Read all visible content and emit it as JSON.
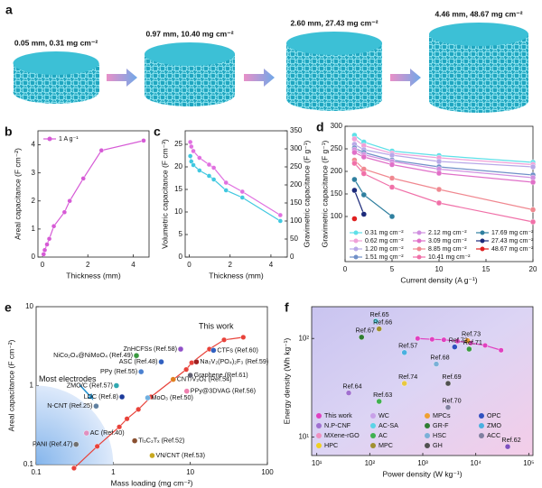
{
  "panel_a": {
    "letter": "a",
    "stages": [
      "0.05 mm, 0.31 mg cm⁻²",
      "0.97 mm, 10.40 mg cm⁻²",
      "2.60 mm, 27.43 mg cm⁻²",
      "4.46 mm, 48.67 mg cm⁻²"
    ]
  },
  "chart_data": [
    {
      "letter": "b",
      "type": "line",
      "xlabel": "Thickness (mm)",
      "ylabel": "Areal capacitance (F cm⁻²)",
      "xlim": [
        -0.2,
        4.7
      ],
      "xticks": [
        0,
        2,
        4
      ],
      "ylim": [
        0,
        4.5
      ],
      "yticks": [
        0,
        1,
        2,
        3,
        4
      ],
      "legend": "upper left",
      "series": [
        {
          "name": "1 A g⁻¹",
          "color": "#d65ad6",
          "x": [
            0.05,
            0.1,
            0.2,
            0.3,
            0.5,
            0.97,
            1.2,
            1.8,
            2.6,
            4.46
          ],
          "values": [
            0.1,
            0.25,
            0.45,
            0.65,
            1.1,
            1.6,
            2.0,
            2.8,
            3.8,
            4.15
          ]
        }
      ]
    },
    {
      "letter": "c",
      "type": "line",
      "xlabel": "Thickness (mm)",
      "ylabel": "Volumetric capacitance (F cm⁻³)",
      "y2label": "Gravimetric capacitance (F g⁻¹)",
      "xlim": [
        -0.2,
        4.8
      ],
      "xticks": [
        0,
        2,
        4
      ],
      "ylim": [
        0,
        28
      ],
      "yticks": [
        0,
        5,
        10,
        15,
        20,
        25
      ],
      "y2lim": [
        0,
        350
      ],
      "y2ticks": [
        0,
        50,
        100,
        150,
        200,
        250,
        300,
        350
      ],
      "series": [
        {
          "color": "#e070e0",
          "x": [
            0.05,
            0.1,
            0.2,
            0.5,
            0.97,
            1.2,
            1.8,
            2.6,
            4.46
          ],
          "values": [
            25.5,
            24.5,
            23.5,
            22,
            20.5,
            19.8,
            16.5,
            14.5,
            9.3
          ]
        },
        {
          "color": "#40c8e0",
          "axis": "y2",
          "x": [
            0.05,
            0.1,
            0.2,
            0.5,
            0.97,
            1.2,
            1.8,
            2.6,
            4.46
          ],
          "values": [
            280,
            265,
            255,
            240,
            225,
            215,
            185,
            165,
            100
          ]
        }
      ]
    },
    {
      "letter": "d",
      "type": "line",
      "xlabel": "Current density (A g⁻¹)",
      "ylabel": "Gravimetric capacitance (F g⁻¹)",
      "xlim": [
        0,
        20
      ],
      "xticks": [
        0,
        5,
        10,
        15,
        20
      ],
      "ylim": [
        0,
        300
      ],
      "yticks": [
        100,
        150,
        200,
        250,
        300
      ],
      "legend": "lower left",
      "series": [
        {
          "name": "0.31 mg cm⁻²",
          "color": "#5de0e8",
          "x": [
            1,
            2,
            5,
            10,
            20
          ],
          "values": [
            280,
            265,
            245,
            235,
            220
          ]
        },
        {
          "name": "0.62 mg cm⁻²",
          "color": "#f0a0d8",
          "x": [
            1,
            2,
            5,
            10,
            20
          ],
          "values": [
            272,
            257,
            240,
            230,
            215
          ]
        },
        {
          "name": "1.20 mg cm⁻²",
          "color": "#b8a8e8",
          "x": [
            1,
            2,
            5,
            10,
            20
          ],
          "values": [
            260,
            248,
            236,
            222,
            210
          ]
        },
        {
          "name": "1.51 mg cm⁻²",
          "color": "#7090c8",
          "x": [
            1,
            2,
            5,
            10,
            20
          ],
          "values": [
            252,
            242,
            225,
            210,
            192
          ]
        },
        {
          "name": "2.12 mg cm⁻²",
          "color": "#d090e0",
          "x": [
            1,
            2,
            5,
            10,
            20
          ],
          "values": [
            248,
            237,
            222,
            205,
            186
          ]
        },
        {
          "name": "3.09 mg cm⁻²",
          "color": "#e070c8",
          "x": [
            1,
            2,
            5,
            10,
            20
          ],
          "values": [
            242,
            232,
            215,
            196,
            176
          ]
        },
        {
          "name": "8.85 mg cm⁻²",
          "color": "#f08890",
          "x": [
            1,
            2,
            5,
            10,
            20
          ],
          "values": [
            225,
            205,
            185,
            160,
            115
          ]
        },
        {
          "name": "10.41 mg cm⁻²",
          "color": "#f070a8",
          "x": [
            1,
            2,
            5,
            10,
            20
          ],
          "values": [
            218,
            195,
            165,
            130,
            88
          ]
        },
        {
          "name": "17.69 mg cm⁻²",
          "color": "#2f7f9f",
          "x": [
            1,
            2,
            5
          ],
          "values": [
            182,
            148,
            100
          ]
        },
        {
          "name": "27.43 mg cm⁻²",
          "color": "#1c2a7a",
          "x": [
            1,
            2
          ],
          "values": [
            158,
            105
          ]
        },
        {
          "name": "48.67 mg cm⁻²",
          "color": "#e02020",
          "x": [
            1
          ],
          "values": [
            95
          ]
        }
      ]
    },
    {
      "letter": "e",
      "type": "scatter",
      "log_x": true,
      "log_y": true,
      "xlabel": "Mass loading (mg cm⁻²)",
      "ylabel": "Areal capacitance (F cm⁻²)",
      "xlim": [
        0.1,
        100
      ],
      "xticks": [
        0.1,
        1,
        10,
        100
      ],
      "ylim": [
        0.1,
        10
      ],
      "yticks": [
        0.1,
        1,
        10
      ],
      "annotation": "Most electrodes",
      "series": [
        {
          "name": "This work",
          "color": "#e8423a",
          "x": [
            0.31,
            0.62,
            1.2,
            1.51,
            2.12,
            3.09,
            8.85,
            10.41,
            17.69,
            27.43,
            48.67
          ],
          "values": [
            0.09,
            0.17,
            0.3,
            0.38,
            0.5,
            0.72,
            1.6,
            1.95,
            2.9,
            3.8,
            4.1
          ]
        }
      ],
      "points": [
        {
          "label": "NiCo₂O₄@NiMoO₄ (Ref.49)",
          "x": 2.0,
          "y": 2.4,
          "color": "#3a9a40"
        },
        {
          "label": "ZnHCFSs (Ref.58)",
          "x": 7.5,
          "y": 2.9,
          "color": "#9050c8"
        },
        {
          "label": "ASC (Ref.48)",
          "x": 4.2,
          "y": 2.0,
          "color": "#3060c0"
        },
        {
          "label": "PPy (Ref.55)",
          "x": 2.3,
          "y": 1.5,
          "color": "#4a80d0"
        },
        {
          "label": "ZMO/C (Ref.57)",
          "x": 1.1,
          "y": 1.0,
          "color": "#30a8b0"
        },
        {
          "label": "LDC (Ref.8)",
          "x": 1.3,
          "y": 0.72,
          "color": "#1c3a9a"
        },
        {
          "label": "N-CNT (Ref.25)",
          "x": 0.6,
          "y": 0.55,
          "color": "#6080a0"
        },
        {
          "label": "PANI (Ref.47)",
          "x": 0.33,
          "y": 0.18,
          "color": "#707070"
        },
        {
          "label": "AC (Ref.40)",
          "x": 0.45,
          "y": 0.25,
          "color": "#e090c0"
        },
        {
          "label": "MoO₃ (Ref.50)",
          "x": 2.8,
          "y": 0.7,
          "color": "#70b0e0"
        },
        {
          "label": "Ti₃C₂Tₓ (Ref.52)",
          "x": 1.9,
          "y": 0.2,
          "color": "#8a5030"
        },
        {
          "label": "VN/CNT (Ref.53)",
          "x": 3.2,
          "y": 0.13,
          "color": "#c8a820"
        },
        {
          "label": "CNT/V₂O₅ (Ref.54)",
          "x": 6,
          "y": 1.2,
          "color": "#e08020"
        },
        {
          "label": "Na₃V₂(PO₄)₂F₃ (Ref.59)",
          "x": 12,
          "y": 2.0,
          "color": "#a02020"
        },
        {
          "label": "Graphene (Ref.61)",
          "x": 10,
          "y": 1.35,
          "color": "#606070"
        },
        {
          "label": "PPy@3DVAG (Ref.56)",
          "x": 9,
          "y": 0.85,
          "color": "#f080b0"
        },
        {
          "label": "CTFs (Ref.60)",
          "x": 20,
          "y": 2.8,
          "color": "#3060c0"
        }
      ]
    },
    {
      "letter": "f",
      "type": "scatter",
      "log_x": true,
      "log_y": true,
      "xlabel": "Power density (W kg⁻¹)",
      "ylabel": "Energy density (Wh kg⁻¹)",
      "xlim": [
        8,
        120000
      ],
      "xticks": [
        {
          "value": 10,
          "label": "10¹"
        },
        {
          "value": 100,
          "label": "10²"
        },
        {
          "value": 1000,
          "label": "10³"
        },
        {
          "value": 10000,
          "label": "10⁴"
        },
        {
          "value": 100000,
          "label": "10⁵"
        }
      ],
      "ylim": [
        6.5,
        210
      ],
      "yticks": [
        {
          "value": 10,
          "label": "10¹"
        },
        {
          "value": 100,
          "label": "10²"
        }
      ],
      "series": [
        {
          "color": "#e040c0",
          "x": [
            800,
            1500,
            2500,
            4500,
            8000,
            15000,
            30000
          ],
          "values": [
            100,
            98,
            97,
            94,
            90,
            85,
            76
          ]
        }
      ],
      "points": [
        {
          "label": "Ref.65",
          "x": 130,
          "y": 150,
          "color": "#5bd3e6"
        },
        {
          "label": "Ref.66",
          "x": 150,
          "y": 125,
          "color": "#a09030"
        },
        {
          "label": "Ref.67",
          "x": 70,
          "y": 103,
          "color": "#2f7d32"
        },
        {
          "label": "Ref.57",
          "x": 450,
          "y": 72,
          "color": "#4ab0e0"
        },
        {
          "label": "Ref.73",
          "x": 7000,
          "y": 95,
          "color": "#f0a030"
        },
        {
          "label": "Ref.72",
          "x": 4000,
          "y": 82,
          "color": "#3050c0"
        },
        {
          "label": "Ref.71",
          "x": 7500,
          "y": 78,
          "color": "#3a9a40"
        },
        {
          "label": "Ref.68",
          "x": 1800,
          "y": 55,
          "color": "#7ab0d8"
        },
        {
          "label": "Ref.74",
          "x": 450,
          "y": 35,
          "color": "#e8c840"
        },
        {
          "label": "Ref.69",
          "x": 3000,
          "y": 35,
          "color": "#505050"
        },
        {
          "label": "Ref.64",
          "x": 40,
          "y": 28,
          "color": "#a070d0"
        },
        {
          "label": "Ref.63",
          "x": 150,
          "y": 23,
          "color": "#40b050"
        },
        {
          "label": "Ref.70",
          "x": 3000,
          "y": 20,
          "color": "#8080a0"
        },
        {
          "label": "Ref.62",
          "x": 40000,
          "y": 8,
          "color": "#8050c0"
        }
      ],
      "legend": [
        {
          "name": "This work",
          "color": "#e040c0"
        },
        {
          "name": "WC",
          "color": "#c8a0e8"
        },
        {
          "name": "MPCs",
          "color": "#f0a030"
        },
        {
          "name": "OPC",
          "color": "#3050c0"
        },
        {
          "name": "N.P-CNF",
          "color": "#a070d0"
        },
        {
          "name": "AC-SA",
          "color": "#5bd3e6"
        },
        {
          "name": "GR-F",
          "color": "#2f7d32"
        },
        {
          "name": "ZMO",
          "color": "#4ab0e0"
        },
        {
          "name": "MXene-rGO",
          "color": "#f090c0"
        },
        {
          "name": "AC",
          "color": "#40b050"
        },
        {
          "name": "HSC",
          "color": "#7ab0d8"
        },
        {
          "name": "ACC",
          "color": "#8080a0"
        },
        {
          "name": "HPC",
          "color": "#f0d020"
        },
        {
          "name": "MPC",
          "color": "#a09030"
        },
        {
          "name": "GH",
          "color": "#505050"
        }
      ]
    }
  ]
}
